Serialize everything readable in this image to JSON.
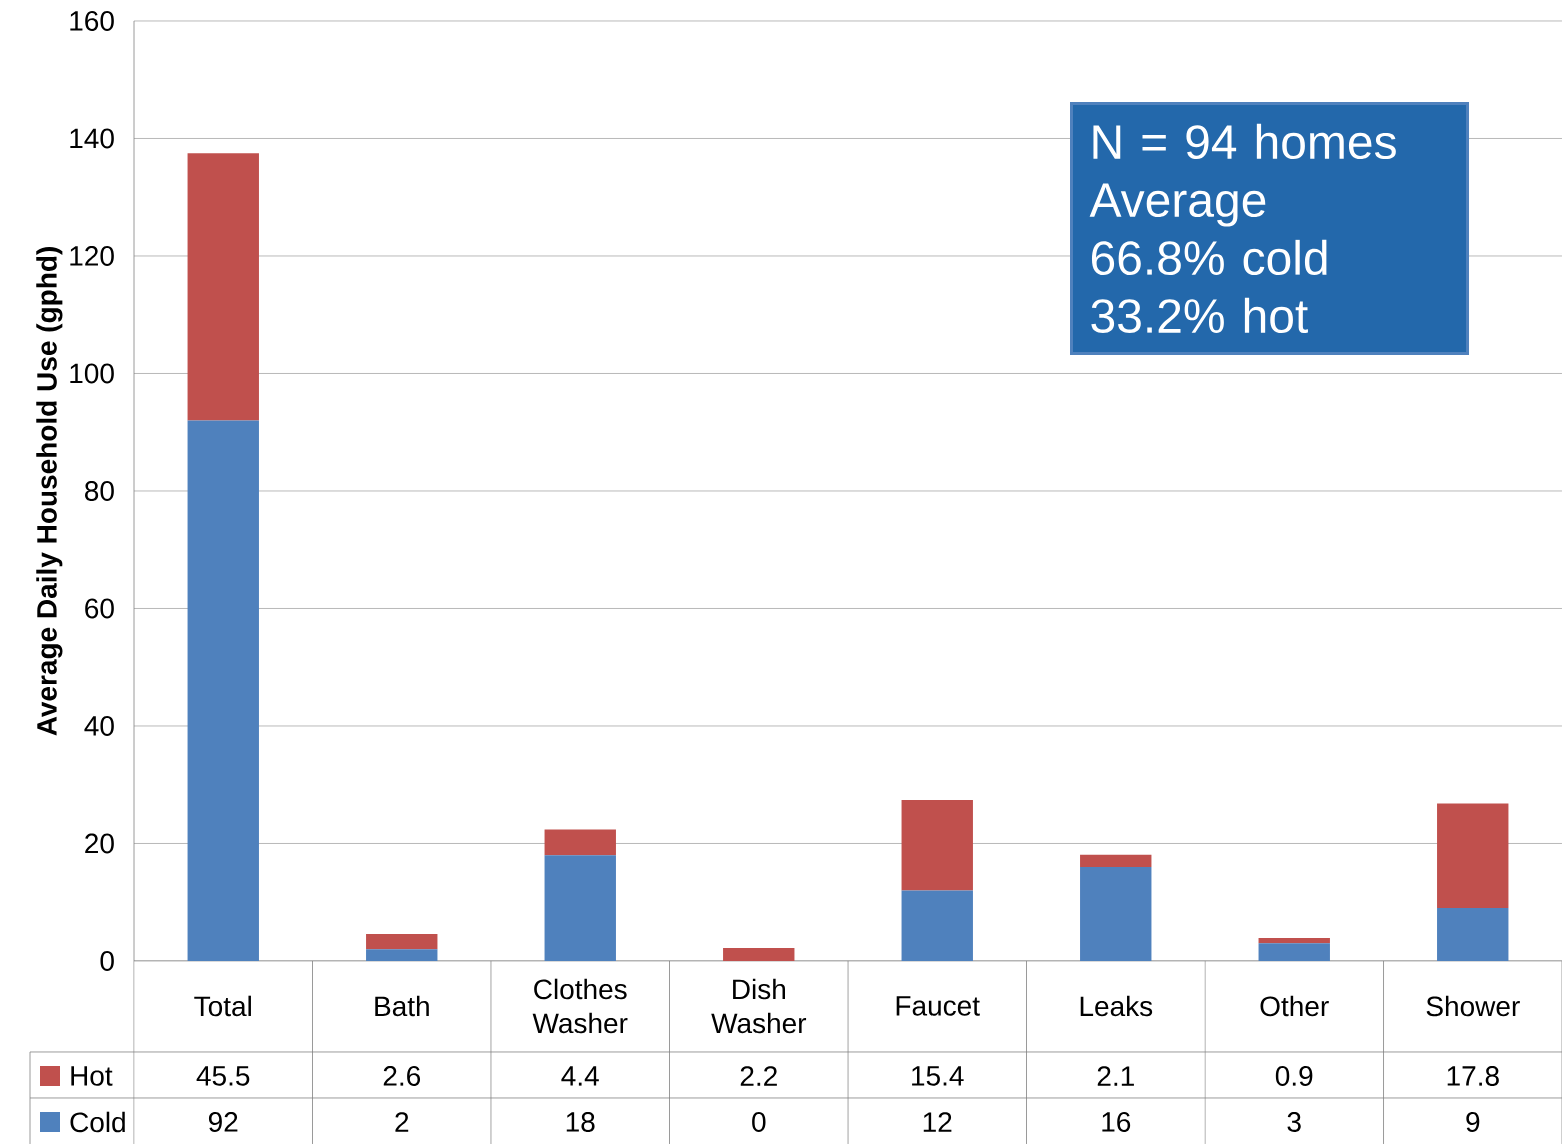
{
  "chart_data": {
    "type": "bar",
    "stacked": true,
    "ylabel": "Average Daily Household Use (gphd)",
    "categories": [
      "Total",
      "Bath",
      "Clothes Washer",
      "Dish Washer",
      "Faucet",
      "Leaks",
      "Other",
      "Shower"
    ],
    "series": [
      {
        "name": "Cold",
        "color": "#4f81bd",
        "values": [
          92,
          2,
          18,
          0,
          12,
          16,
          3,
          9
        ]
      },
      {
        "name": "Hot",
        "color": "#c0504d",
        "values": [
          45.5,
          2.6,
          4.4,
          2.2,
          15.4,
          2.1,
          0.9,
          17.8
        ]
      }
    ],
    "ylim": [
      0,
      160
    ],
    "yticks": [
      0,
      20,
      40,
      60,
      80,
      100,
      120,
      140,
      160
    ],
    "grid": "y",
    "legend": "bottom",
    "data_labels": true,
    "annotations": [
      "N = 94 homes",
      "Average",
      "66.8% cold",
      "33.2% hot"
    ]
  }
}
